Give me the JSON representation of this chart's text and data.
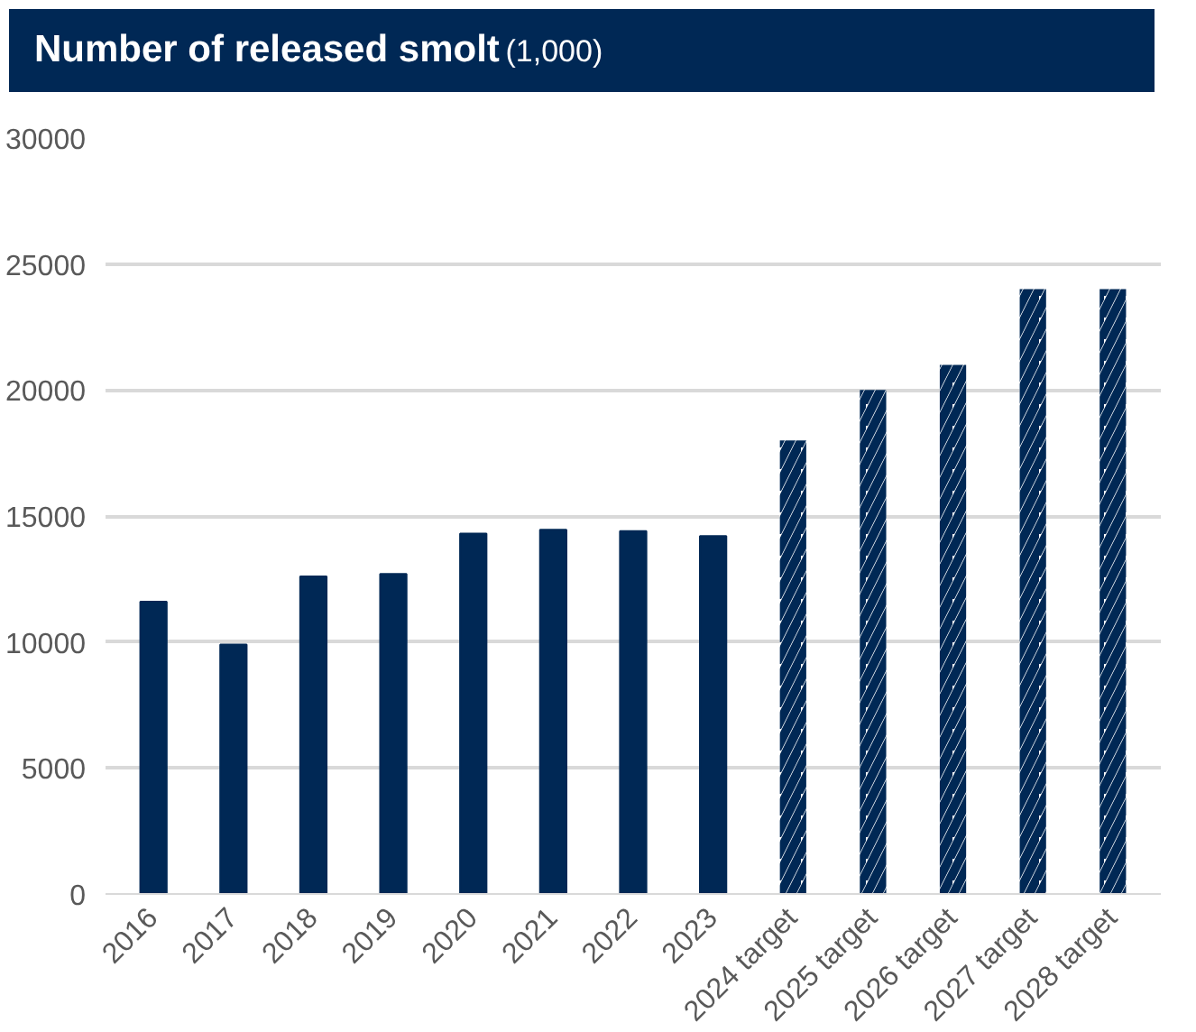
{
  "chart_data": {
    "type": "bar",
    "title": "Number of released smolt",
    "subtitle": "(1,000)",
    "categories": [
      "2016",
      "2017",
      "2018",
      "2019",
      "2020",
      "2021",
      "2022",
      "2023",
      "2024 target",
      "2025 target",
      "2026 target",
      "2027 target",
      "2028 target"
    ],
    "series": [
      {
        "color": "#002855",
        "values": [
          11600,
          9900,
          12600,
          12700,
          14300,
          14450,
          14400,
          14200,
          null,
          null,
          null,
          null,
          null
        ]
      },
      {
        "color": "#002855",
        "values": [
          null,
          null,
          null,
          null,
          null,
          null,
          null,
          null,
          18000,
          20000,
          21000,
          24000,
          24000
        ]
      }
    ],
    "ylim": [
      0,
      30000
    ],
    "yticks": [
      0,
      5000,
      10000,
      15000,
      20000,
      25000,
      30000
    ],
    "grid": "y"
  }
}
